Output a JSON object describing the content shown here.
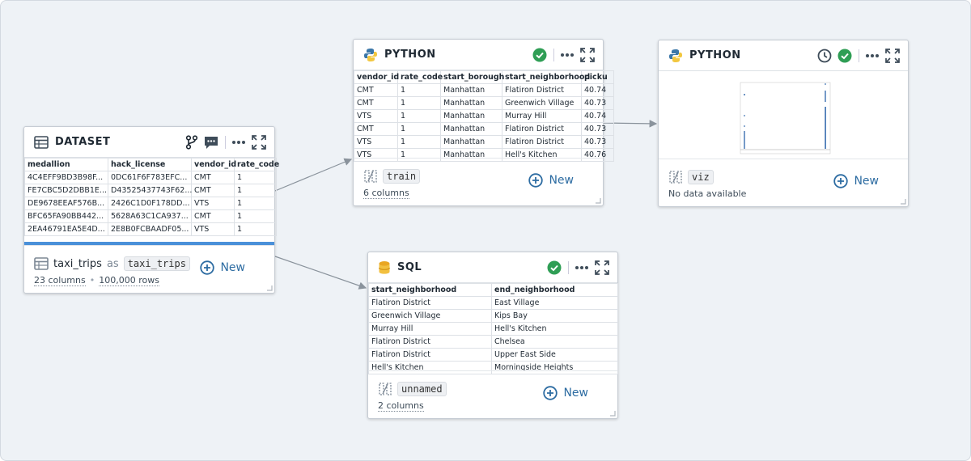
{
  "nodes": [
    {
      "kind": "DATASET",
      "columns": [
        "medallion",
        "hack_license",
        "vendor_id",
        "rate_code"
      ],
      "rows": [
        [
          "4C4EFF9BD3B98F...",
          "0DC61F6F783EFC...",
          "CMT",
          "1"
        ],
        [
          "FE7CBC5D2DBB1E...",
          "D43525437743F62...",
          "CMT",
          "1"
        ],
        [
          "DE9678EEAF576B...",
          "2426C1D0F178DD...",
          "VTS",
          "1"
        ],
        [
          "BFC65FA90BB442...",
          "5628A63C1CA937...",
          "CMT",
          "1"
        ],
        [
          "2EA46791EA5E4D...",
          "2E8B0FCBAADF05...",
          "VTS",
          "1"
        ]
      ],
      "name": "taxi_trips",
      "alias_word": "as",
      "alias": "taxi_trips",
      "meta": [
        "23 columns",
        "100,000 rows"
      ],
      "meta_separator": "•",
      "action": "New"
    },
    {
      "kind": "PYTHON",
      "columns": [
        "vendor_id",
        "rate_code",
        "start_borough",
        "start_neighborhood",
        "picku"
      ],
      "rows": [
        [
          "CMT",
          "1",
          "Manhattan",
          "Flatiron District",
          "40.74"
        ],
        [
          "CMT",
          "1",
          "Manhattan",
          "Greenwich Village",
          "40.73"
        ],
        [
          "VTS",
          "1",
          "Manhattan",
          "Murray Hill",
          "40.74"
        ],
        [
          "CMT",
          "1",
          "Manhattan",
          "Flatiron District",
          "40.73"
        ],
        [
          "VTS",
          "1",
          "Manhattan",
          "Flatiron District",
          "40.73"
        ],
        [
          "VTS",
          "1",
          "Manhattan",
          "Hell's Kitchen",
          "40.76"
        ]
      ],
      "alias": "train",
      "meta": [
        "6 columns"
      ],
      "action": "New"
    },
    {
      "kind": "PYTHON",
      "alias": "viz",
      "meta": [
        "No data available"
      ],
      "action": "New"
    },
    {
      "kind": "SQL",
      "columns": [
        "start_neighborhood",
        "end_neighborhood"
      ],
      "rows": [
        [
          "Flatiron District",
          "East Village"
        ],
        [
          "Greenwich Village",
          "Kips Bay"
        ],
        [
          "Murray Hill",
          "Hell's Kitchen"
        ],
        [
          "Flatiron District",
          "Chelsea"
        ],
        [
          "Flatiron District",
          "Upper East Side"
        ],
        [
          "Hell's Kitchen",
          "Morningside Heights"
        ]
      ],
      "alias": "unnamed",
      "meta": [
        "2 columns"
      ],
      "action": "New"
    }
  ]
}
